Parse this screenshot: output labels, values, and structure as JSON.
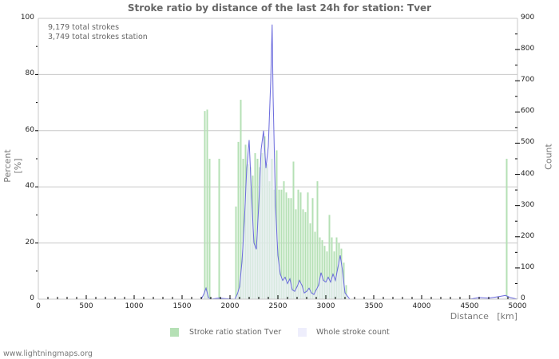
{
  "chart_data": {
    "type": "bar",
    "title": "Stroke ratio by distance of the last 24h for station: Tver",
    "annotations": [
      "9,179 total strokes",
      "3,749 total strokes station"
    ],
    "xlabel": "Distance   [km]",
    "ylabel_left": "Percent   [%]",
    "ylabel_right": "Count",
    "xlim": [
      0,
      5000
    ],
    "ylim_left": [
      0,
      100
    ],
    "ylim_right": [
      0,
      900
    ],
    "x_ticks": [
      0,
      500,
      1000,
      1500,
      2000,
      2500,
      3000,
      3500,
      4000,
      4500,
      5000
    ],
    "y_ticks_left": [
      0,
      20,
      40,
      60,
      80,
      100
    ],
    "y_ticks_right": [
      0,
      100,
      200,
      300,
      400,
      500,
      600,
      700,
      800,
      900
    ],
    "grid": true,
    "legend_position": "bottom",
    "bin_width_km": 25,
    "series": [
      {
        "name": "Stroke ratio station Tver",
        "type": "bar",
        "axis": "left",
        "color": "#b5e0b5",
        "points": [
          [
            1725,
            67
          ],
          [
            1750,
            67.5
          ],
          [
            1775,
            50
          ],
          [
            1875,
            50
          ],
          [
            2050,
            33
          ],
          [
            2075,
            56
          ],
          [
            2100,
            71
          ],
          [
            2125,
            50
          ],
          [
            2150,
            55
          ],
          [
            2175,
            48
          ],
          [
            2200,
            47
          ],
          [
            2225,
            44
          ],
          [
            2250,
            52
          ],
          [
            2275,
            50
          ],
          [
            2300,
            47
          ],
          [
            2325,
            52
          ],
          [
            2350,
            58
          ],
          [
            2375,
            48
          ],
          [
            2400,
            42
          ],
          [
            2425,
            50
          ],
          [
            2450,
            39
          ],
          [
            2475,
            53
          ],
          [
            2500,
            39
          ],
          [
            2525,
            39
          ],
          [
            2550,
            42
          ],
          [
            2575,
            38
          ],
          [
            2600,
            36
          ],
          [
            2625,
            36
          ],
          [
            2650,
            49
          ],
          [
            2675,
            32
          ],
          [
            2700,
            39
          ],
          [
            2725,
            38
          ],
          [
            2750,
            32
          ],
          [
            2775,
            31
          ],
          [
            2800,
            38
          ],
          [
            2825,
            27
          ],
          [
            2850,
            36
          ],
          [
            2875,
            24
          ],
          [
            2900,
            42
          ],
          [
            2925,
            22
          ],
          [
            2950,
            21
          ],
          [
            2975,
            19
          ],
          [
            3000,
            17
          ],
          [
            3025,
            30
          ],
          [
            3050,
            22
          ],
          [
            3075,
            17
          ],
          [
            3100,
            22
          ],
          [
            3125,
            20
          ],
          [
            3150,
            18
          ],
          [
            3175,
            13
          ],
          [
            3200,
            5
          ],
          [
            4875,
            50
          ]
        ]
      },
      {
        "name": "Whole stroke count",
        "type": "line",
        "axis": "right",
        "color": "#6b6bdd",
        "fill": "#eeeefc",
        "points": [
          [
            1700,
            0
          ],
          [
            1725,
            15
          ],
          [
            1750,
            35
          ],
          [
            1775,
            5
          ],
          [
            1800,
            0
          ],
          [
            1875,
            3
          ],
          [
            2050,
            0
          ],
          [
            2075,
            15
          ],
          [
            2100,
            40
          ],
          [
            2125,
            120
          ],
          [
            2150,
            250
          ],
          [
            2175,
            420
          ],
          [
            2200,
            510
          ],
          [
            2225,
            330
          ],
          [
            2250,
            180
          ],
          [
            2275,
            160
          ],
          [
            2300,
            300
          ],
          [
            2325,
            480
          ],
          [
            2350,
            540
          ],
          [
            2375,
            420
          ],
          [
            2400,
            490
          ],
          [
            2425,
            700
          ],
          [
            2440,
            880
          ],
          [
            2450,
            650
          ],
          [
            2475,
            300
          ],
          [
            2500,
            140
          ],
          [
            2525,
            80
          ],
          [
            2550,
            60
          ],
          [
            2575,
            70
          ],
          [
            2600,
            50
          ],
          [
            2625,
            65
          ],
          [
            2650,
            30
          ],
          [
            2675,
            25
          ],
          [
            2700,
            40
          ],
          [
            2725,
            60
          ],
          [
            2750,
            45
          ],
          [
            2775,
            20
          ],
          [
            2800,
            25
          ],
          [
            2825,
            35
          ],
          [
            2850,
            20
          ],
          [
            2875,
            15
          ],
          [
            2900,
            30
          ],
          [
            2925,
            45
          ],
          [
            2950,
            85
          ],
          [
            2975,
            60
          ],
          [
            3000,
            55
          ],
          [
            3025,
            70
          ],
          [
            3050,
            55
          ],
          [
            3075,
            80
          ],
          [
            3100,
            60
          ],
          [
            3125,
            100
          ],
          [
            3150,
            140
          ],
          [
            3175,
            90
          ],
          [
            3200,
            20
          ],
          [
            3225,
            10
          ],
          [
            3250,
            0
          ],
          [
            4500,
            0
          ],
          [
            4600,
            5
          ],
          [
            4700,
            3
          ],
          [
            4800,
            8
          ],
          [
            4875,
            12
          ],
          [
            4925,
            5
          ],
          [
            5000,
            0
          ]
        ]
      }
    ]
  },
  "footer": "www.lightningmaps.org"
}
